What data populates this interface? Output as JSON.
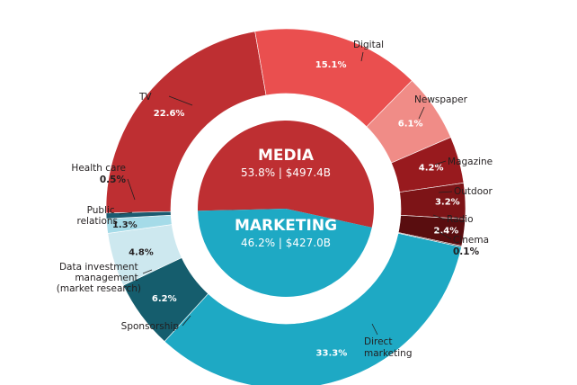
{
  "chart_data": {
    "type": "pie",
    "inner": [
      {
        "name": "MEDIA",
        "share": "53.8%",
        "amount": "$497.4B",
        "value": 53.8,
        "color": "#be2f32"
      },
      {
        "name": "MARKETING",
        "share": "46.2%",
        "amount": "$427.0B",
        "value": 46.2,
        "color": "#1ea9c4"
      }
    ],
    "outer": [
      {
        "label": "TV",
        "value": 22.6,
        "pct_text": "22.6%",
        "color": "#be2f32",
        "pct_color": "#ffffff"
      },
      {
        "label": "Digital",
        "value": 15.1,
        "pct_text": "15.1%",
        "color": "#ea4f4f",
        "pct_color": "#ffffff"
      },
      {
        "label": "Newspaper",
        "value": 6.1,
        "pct_text": "6.1%",
        "color": "#f08c87",
        "pct_color": "#ffffff"
      },
      {
        "label": "Magazine",
        "value": 4.2,
        "pct_text": "4.2%",
        "color": "#981a1e",
        "pct_color": "#ffffff"
      },
      {
        "label": "Outdoor",
        "value": 3.2,
        "pct_text": "3.2%",
        "color": "#7d1417",
        "pct_color": "#ffffff"
      },
      {
        "label": "Radio",
        "value": 2.4,
        "pct_text": "2.4%",
        "color": "#590d0f",
        "pct_color": "#ffffff"
      },
      {
        "label": "Cinema",
        "value": 0.1,
        "pct_text": "0.1%",
        "color": "#300708",
        "pct_color": "#231f20"
      },
      {
        "label": "Direct marketing",
        "value": 33.3,
        "pct_text": "33.3%",
        "color": "#1ea9c4",
        "pct_color": "#ffffff"
      },
      {
        "label": "Sponsorship",
        "value": 6.2,
        "pct_text": "6.2%",
        "color": "#155d6d",
        "pct_color": "#ffffff"
      },
      {
        "label": "Data investment management (market research)",
        "value": 4.8,
        "pct_text": "4.8%",
        "color": "#cde8ef",
        "pct_color": "#231f20"
      },
      {
        "label": "Public relations",
        "value": 1.3,
        "pct_text": "1.3%",
        "color": "#a5dbe8",
        "pct_color": "#231f20"
      },
      {
        "label": "Health care",
        "value": 0.5,
        "pct_text": "0.5%",
        "color": "#1b5b70",
        "pct_color": "#231f20"
      }
    ]
  }
}
